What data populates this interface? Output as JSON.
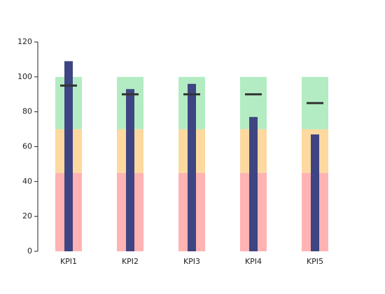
{
  "chart_data": {
    "type": "bullet",
    "categories": [
      "KPI1",
      "KPI2",
      "KPI3",
      "KPI4",
      "KPI5"
    ],
    "values": [
      109,
      93,
      96,
      77,
      67
    ],
    "targets": [
      95,
      90,
      90,
      90,
      85
    ],
    "ranges": [
      45,
      70,
      100
    ],
    "range_colors": [
      "#ffb3b3",
      "#fdd99f",
      "#b3ecc3"
    ],
    "color": "#3e4582",
    "target_color": "#333333",
    "ylim": [
      0,
      120
    ],
    "yticks": [
      0,
      20,
      40,
      60,
      80,
      100,
      120
    ]
  }
}
